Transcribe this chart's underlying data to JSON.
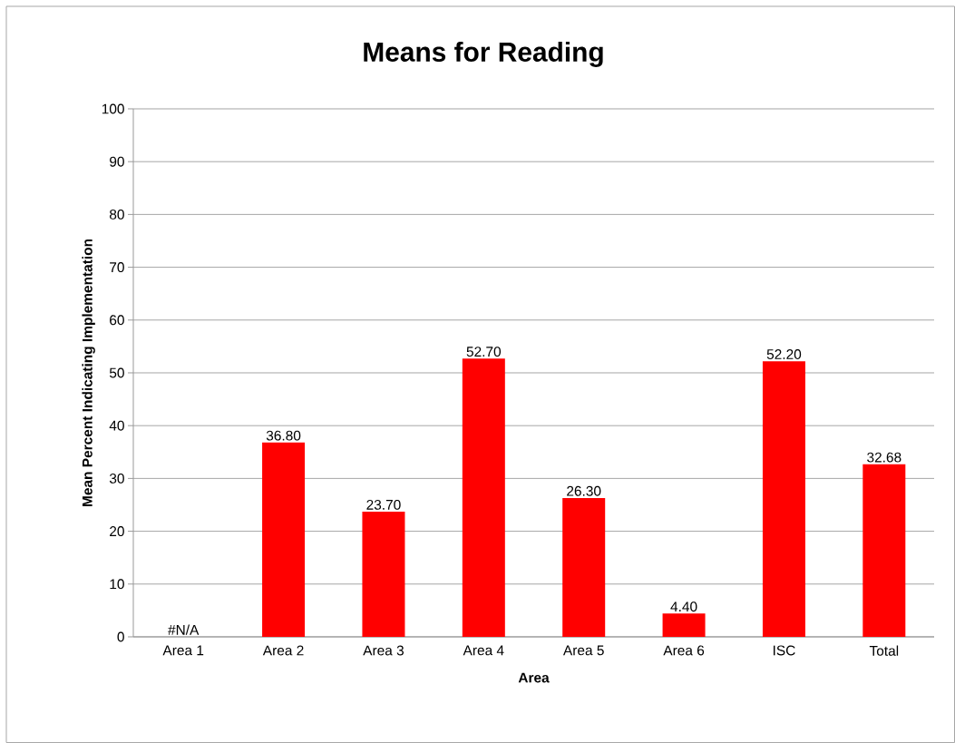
{
  "chart_data": {
    "type": "bar",
    "title": "Means for Reading",
    "xlabel": "Area",
    "ylabel": "Mean Percent Indicating Implementation",
    "categories": [
      "Area 1",
      "Area 2",
      "Area 3",
      "Area 4",
      "Area 5",
      "Area 6",
      "ISC",
      "Total"
    ],
    "values": [
      null,
      36.8,
      23.7,
      52.7,
      26.3,
      4.4,
      52.2,
      32.68
    ],
    "value_labels": [
      "#N/A",
      "36.80",
      "23.70",
      "52.70",
      "26.30",
      "4.40",
      "52.20",
      "32.68"
    ],
    "color": "#ff0000",
    "ylim": [
      0,
      100
    ],
    "yticks": [
      0,
      10,
      20,
      30,
      40,
      50,
      60,
      70,
      80,
      90,
      100
    ],
    "grid": "y"
  }
}
